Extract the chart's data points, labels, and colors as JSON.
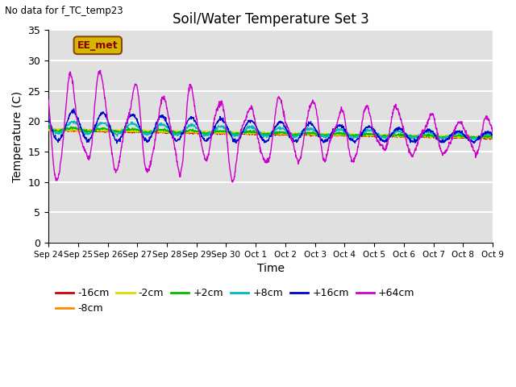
{
  "title": "Soil/Water Temperature Set 3",
  "subtitle": "No data for f_TC_temp23",
  "xlabel": "Time",
  "ylabel": "Temperature (C)",
  "ylim": [
    0,
    35
  ],
  "yticks": [
    0,
    5,
    10,
    15,
    20,
    25,
    30,
    35
  ],
  "plot_bg_color": "#e0e0e0",
  "grid_color": "white",
  "annotation_label": "EE_met",
  "annotation_bg": "#d4b800",
  "annotation_border": "#8b4513",
  "annotation_text_color": "#8b0000",
  "series": [
    {
      "label": "-16cm",
      "color": "#cc0000"
    },
    {
      "label": "-8cm",
      "color": "#ff8800"
    },
    {
      "label": "-2cm",
      "color": "#dddd00"
    },
    {
      "label": "+2cm",
      "color": "#00bb00"
    },
    {
      "label": "+8cm",
      "color": "#00bbbb"
    },
    {
      "label": "+16cm",
      "color": "#0000cc"
    },
    {
      "label": "+64cm",
      "color": "#cc00cc"
    }
  ],
  "x_tick_labels": [
    "Sep 24",
    "Sep 25",
    "Sep 26",
    "Sep 27",
    "Sep 28",
    "Sep 29",
    "Sep 30",
    "Oct 1",
    "Oct 2",
    "Oct 3",
    "Oct 4",
    "Oct 5",
    "Oct 6",
    "Oct 7",
    "Oct 8",
    "Oct 9"
  ]
}
